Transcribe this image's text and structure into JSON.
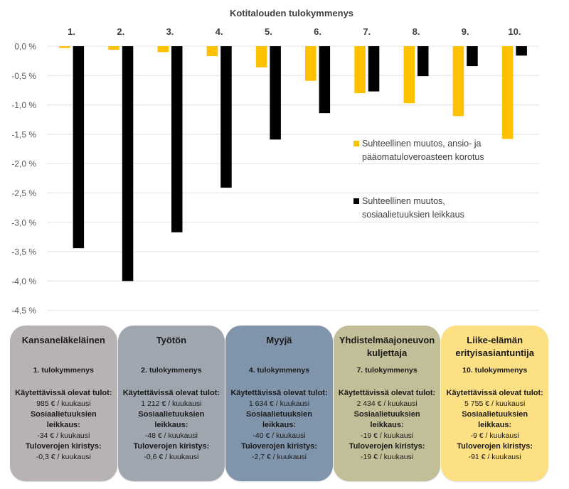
{
  "chart_data": {
    "type": "bar",
    "title": "Kotitalouden tulokymmenys",
    "xlabel": "Kotitalouden tulokymmenys",
    "ylabel": "",
    "categories": [
      "1.",
      "2.",
      "3.",
      "4.",
      "5.",
      "6.",
      "7.",
      "8.",
      "9.",
      "10."
    ],
    "series": [
      {
        "name": "Suhteellinen muutos, ansio- ja pääomatuloveroasteen korotus",
        "color": "#ffc000",
        "values": [
          -0.03,
          -0.06,
          -0.1,
          -0.17,
          -0.36,
          -0.59,
          -0.8,
          -0.97,
          -1.19,
          -1.58
        ]
      },
      {
        "name": "Suhteellinen muutos, sosiaalietuuksien leikkaus",
        "color": "#000000",
        "values": [
          -3.44,
          -4.0,
          -3.17,
          -2.41,
          -1.59,
          -1.14,
          -0.77,
          -0.51,
          -0.34,
          -0.16
        ]
      }
    ],
    "ylim": [
      -4.5,
      0.0
    ],
    "yticks": [
      0.0,
      -0.5,
      -1.0,
      -1.5,
      -2.0,
      -2.5,
      -3.0,
      -3.5,
      -4.0,
      -4.5
    ],
    "ytick_labels": [
      "0,0 %",
      "-0,5 %",
      "-1,0 %",
      "-1,5 %",
      "-2,0 %",
      "-2,5 %",
      "-3,0 %",
      "-3,5 %",
      "-4,0 %",
      "-4,5 %"
    ],
    "grid": true,
    "x_axis_position": "top",
    "legend_position": "right",
    "legend": [
      {
        "lines": [
          "Suhteellinen muutos, ansio- ja",
          "pääomatuloveroasteen korotus"
        ],
        "color": "#ffc000"
      },
      {
        "lines": [
          "Suhteellinen muutos,",
          "sosiaalietuuksien leikkaus"
        ],
        "color": "#000000"
      }
    ]
  },
  "cards": [
    {
      "title": "Kansaneläkeläinen",
      "decile": "1. tulokymmenys",
      "color": "#b8b3b2",
      "income_label": "Käytettävissä olevat tulot:",
      "income_value": "985 € / kuukausi",
      "benefit_label": "Sosiaalietuuksien leikkaus:",
      "benefit_value": "-34 € / kuukausi",
      "tax_label": "Tuloverojen kiristys:",
      "tax_value": "-0,3 € / kuukausi"
    },
    {
      "title": "Työtön",
      "decile": "2. tulokymmenys",
      "color": "#9fa6b0",
      "income_label": "Käytettävissä olevat tulot:",
      "income_value": "1 212 € / kuukausi",
      "benefit_label": "Sosiaalietuuksien leikkaus:",
      "benefit_value": "-48 € / kuukausi",
      "tax_label": "Tuloverojen kiristys:",
      "tax_value": "-0,6 € / kuukausi"
    },
    {
      "title": "Myyjä",
      "decile": "4. tulokymmenys",
      "color": "#8095ab",
      "income_label": "Käytettävissä olevat tulot:",
      "income_value": "1 634 € / kuukausi",
      "benefit_label": "Sosiaalietuuksien leikkaus:",
      "benefit_value": "-40 € / kuukausi",
      "tax_label": "Tuloverojen kiristys:",
      "tax_value": "-2,7 € / kuukausi"
    },
    {
      "title": "Yhdistelmäajoneuvon kuljettaja",
      "decile": "7. tulokymmenys",
      "color": "#c2bf98",
      "income_label": "Käytettävissä olevat tulot:",
      "income_value": "2 434 € / kuukausi",
      "benefit_label": "Sosiaalietuuksien leikkaus:",
      "benefit_value": "-19 € / kuukausi",
      "tax_label": "Tuloverojen kiristys:",
      "tax_value": "-19 € / kuukausi"
    },
    {
      "title": "Liike-elämän erityisasiantuntija",
      "decile": "10. tulokymmenys",
      "color": "#fde083",
      "income_label": "Käytettävissä olevat tulot:",
      "income_value": "5 755 € / kuukausi",
      "benefit_label": "Sosiaalietuuksien leikkaus:",
      "benefit_value": "-9 € / kuukausi",
      "tax_label": "Tuloverojen kiristys:",
      "tax_value": "-91 € / kuukausi"
    }
  ]
}
